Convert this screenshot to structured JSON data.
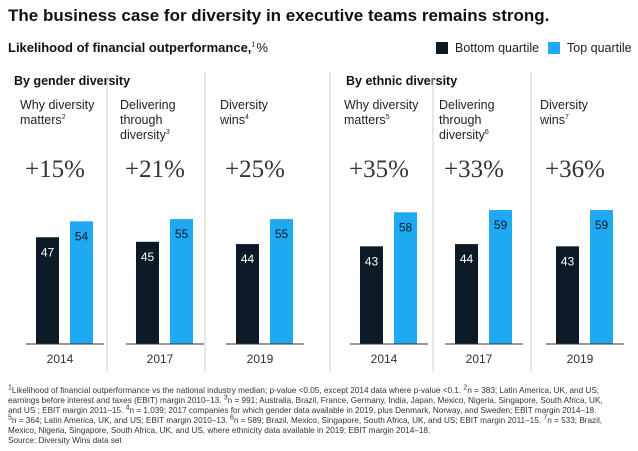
{
  "title": "The business case for diversity in executive teams remains strong.",
  "subtitle": {
    "text": "Likelihood of financial outperformance,",
    "sup": "1",
    "unit": "%"
  },
  "legend": {
    "items": [
      {
        "label": "Bottom quartile",
        "color": "#0b1a26"
      },
      {
        "label": "Top quartile",
        "color": "#1fa9f2"
      }
    ]
  },
  "colors": {
    "bottom": "#0b1a26",
    "top": "#1fa9f2",
    "divider": "#d0d0d0",
    "baseline": "#333333"
  },
  "chart_data": [
    {
      "type": "bar",
      "title": "By gender diversity",
      "groups": [
        {
          "label": "Why diversity matters",
          "label_lines": [
            "Why diversity",
            "matters"
          ],
          "sup": "2",
          "delta": "+15%",
          "year": "2014",
          "bottom": 47,
          "top": 54
        },
        {
          "label": "Delivering through diversity",
          "label_lines": [
            "Delivering",
            "through",
            "diversity"
          ],
          "sup": "3",
          "delta": "+21%",
          "year": "2017",
          "bottom": 45,
          "top": 55
        },
        {
          "label": "Diversity wins",
          "label_lines": [
            "Diversity",
            "wins"
          ],
          "sup": "4",
          "delta": "+25%",
          "year": "2019",
          "bottom": 44,
          "top": 55
        }
      ],
      "series": [
        {
          "name": "Bottom quartile"
        },
        {
          "name": "Top quartile"
        }
      ],
      "ylim": [
        0,
        70
      ],
      "grid": false
    },
    {
      "type": "bar",
      "title": "By ethnic diversity",
      "groups": [
        {
          "label": "Why diversity matters",
          "label_lines": [
            "Why diversity",
            "matters"
          ],
          "sup": "5",
          "delta": "+35%",
          "year": "2014",
          "bottom": 43,
          "top": 58
        },
        {
          "label": "Delivering through diversity",
          "label_lines": [
            "Delivering",
            "through",
            "diversity"
          ],
          "sup": "6",
          "delta": "+33%",
          "year": "2017",
          "bottom": 44,
          "top": 59
        },
        {
          "label": "Diversity wins",
          "label_lines": [
            "Diversity",
            "wins"
          ],
          "sup": "7",
          "delta": "+36%",
          "year": "2019",
          "bottom": 43,
          "top": 59
        }
      ],
      "series": [
        {
          "name": "Bottom quartile"
        },
        {
          "name": "Top quartile"
        }
      ],
      "ylim": [
        0,
        70
      ],
      "grid": false
    }
  ],
  "footnotes": [
    [
      {
        "sup": "1"
      },
      {
        "t": "Likelihood of financial outperformance vs the national industry median; p-value <0.05, except 2014 data where p-value <0.1. "
      },
      {
        "sup": "2"
      },
      {
        "t": "n = 383; Latin America, UK, and US;"
      }
    ],
    [
      {
        "t": "earnings before interest and taxes (EBIT) margin 2010–13. "
      },
      {
        "sup": "3"
      },
      {
        "t": "n = 991; Australia, Brazil, France, Germany, India, Japan, Mexico, Nigeria, Singapore, South Africa, UK,"
      }
    ],
    [
      {
        "t": "and US ; EBIT margin 2011–15. "
      },
      {
        "sup": "4"
      },
      {
        "t": "n = 1,039; 2017 companies for which gender data available in 2019, plus Denmark, Norway, and Sweden;  EBIT margin 2014–18."
      }
    ],
    [
      {
        "sup": "5"
      },
      {
        "t": "n = 364; Latin America, UK, and US; EBIT margin 2010–13. "
      },
      {
        "sup": "6"
      },
      {
        "t": "n = 589; Brazil, Mexico, Singapore, South Africa, UK, and US; EBIT margin 2011–15. "
      },
      {
        "sup": "7"
      },
      {
        "t": "n = 533; Brazil,"
      }
    ],
    [
      {
        "t": "Mexico, Nigeria, Singapore, South Africa, UK, and US, where ethnicity data available in 2019; EBIT margin 2014–18."
      }
    ],
    [
      {
        "t": "Source: Diversity Wins data set"
      }
    ]
  ]
}
